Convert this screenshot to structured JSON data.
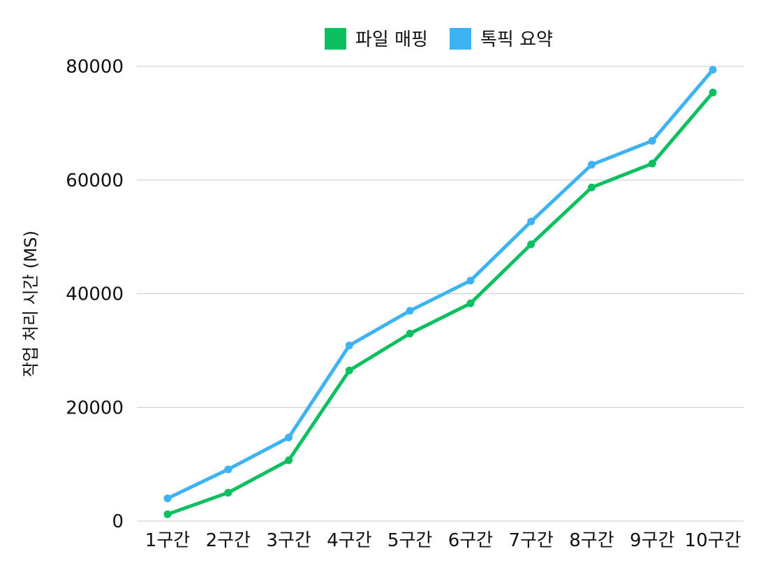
{
  "chart_data": {
    "type": "line",
    "title": "",
    "xlabel": "",
    "ylabel": "작업 처리 시간 (MS)",
    "categories": [
      "1구간",
      "2구간",
      "3구간",
      "4구간",
      "5구간",
      "6구간",
      "7구간",
      "8구간",
      "9구간",
      "10구간"
    ],
    "series": [
      {
        "name": "파일 매핑",
        "color": "#0cbf5f",
        "values": [
          1200,
          5000,
          10700,
          26500,
          33000,
          38300,
          48700,
          58700,
          62900,
          75400
        ]
      },
      {
        "name": "톡픽 요약",
        "color": "#3db3f5",
        "values": [
          4000,
          9100,
          14700,
          30900,
          37000,
          42300,
          52700,
          62700,
          66900,
          79400
        ]
      }
    ],
    "ylim": [
      0,
      80000
    ],
    "yticks": [
      0,
      20000,
      40000,
      60000,
      80000
    ],
    "grid": true,
    "legend_position": "top"
  }
}
